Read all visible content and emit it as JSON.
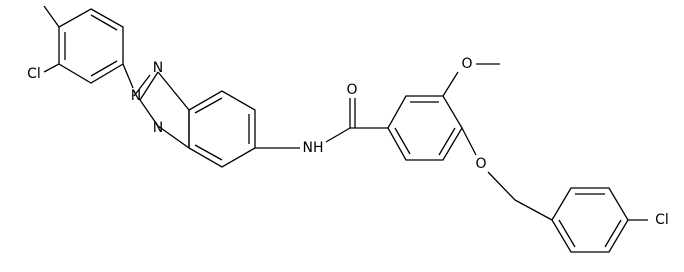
{
  "atoms": [
    {
      "label": "Cl"
    },
    {
      "label": "N"
    },
    {
      "label": "N"
    },
    {
      "label": "N"
    },
    {
      "label": "NH"
    },
    {
      "label": "O"
    },
    {
      "label": "O"
    },
    {
      "label": "O"
    },
    {
      "label": "Cl"
    }
  ]
}
